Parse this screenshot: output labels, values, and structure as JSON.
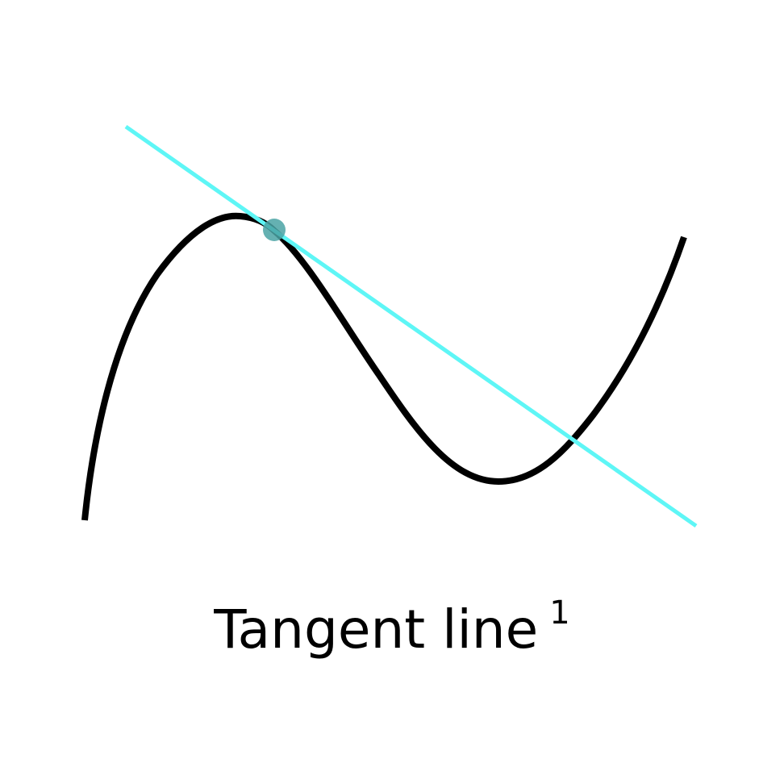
{
  "caption": {
    "text": "Tangent line",
    "superscript": "1"
  },
  "colors": {
    "curve": "#000000",
    "tangent": "#5ef6f6",
    "point": "#4aa3a5",
    "background": "#ffffff"
  }
}
